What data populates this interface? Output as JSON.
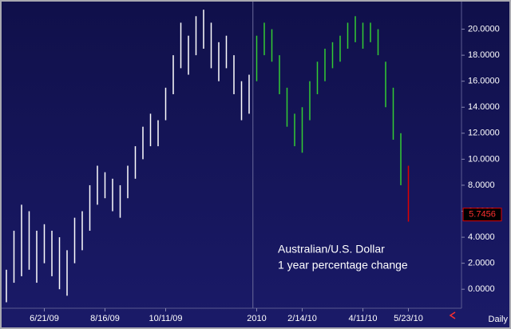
{
  "chart_data": {
    "type": "range-bar",
    "annotation": [
      "Australian/U.S. Dollar",
      "1 year percentage change"
    ],
    "period": "Daily",
    "last_value": {
      "value": 5.7456,
      "label": "5.7456"
    },
    "categories": [
      null,
      null,
      null,
      null,
      null,
      "6/21/09",
      null,
      null,
      null,
      null,
      null,
      null,
      null,
      "8/16/09",
      null,
      null,
      null,
      null,
      null,
      null,
      null,
      "10/11/09",
      null,
      null,
      null,
      null,
      null,
      null,
      null,
      null,
      null,
      null,
      null,
      "2010",
      null,
      null,
      null,
      null,
      null,
      "2/14/10",
      null,
      null,
      null,
      null,
      null,
      null,
      null,
      "4/11/10",
      null,
      null,
      null,
      null,
      null,
      "5/23/10"
    ],
    "series": [
      {
        "color": "#ffffff",
        "low": [
          -1.0,
          0.5,
          1.0,
          1.5,
          0.5,
          2.0,
          1.0,
          0.0,
          -0.5,
          2.0,
          3.0,
          4.5,
          6.5,
          7.0,
          6.0,
          5.5,
          7.0,
          8.5,
          10.0,
          11.0,
          11.0,
          13.0,
          15.0,
          17.0,
          16.5,
          18.0,
          18.5,
          17.0,
          16.0,
          17.0,
          15.0,
          13.0,
          13.5,
          null,
          null,
          null,
          null,
          null,
          null,
          null,
          null,
          null,
          null,
          null,
          null,
          null,
          null,
          null,
          null,
          null,
          null,
          null,
          null,
          null
        ],
        "high": [
          1.5,
          4.5,
          6.5,
          6.0,
          4.5,
          5.0,
          4.5,
          4.0,
          3.0,
          5.5,
          6.0,
          8.0,
          9.5,
          9.0,
          8.5,
          8.0,
          9.5,
          11.0,
          12.5,
          13.5,
          13.0,
          15.5,
          18.0,
          20.5,
          19.5,
          21.0,
          21.5,
          20.5,
          19.0,
          19.5,
          18.0,
          16.0,
          16.5,
          null,
          null,
          null,
          null,
          null,
          null,
          null,
          null,
          null,
          null,
          null,
          null,
          null,
          null,
          null,
          null,
          null,
          null,
          null,
          null,
          null
        ]
      },
      {
        "color": "#33cc33",
        "low": [
          null,
          null,
          null,
          null,
          null,
          null,
          null,
          null,
          null,
          null,
          null,
          null,
          null,
          null,
          null,
          null,
          null,
          null,
          null,
          null,
          null,
          null,
          null,
          null,
          null,
          null,
          null,
          null,
          null,
          null,
          null,
          null,
          null,
          16.0,
          18.0,
          17.5,
          15.0,
          12.5,
          11.0,
          10.5,
          13.0,
          15.0,
          16.0,
          17.0,
          17.5,
          18.5,
          19.0,
          18.5,
          19.0,
          18.0,
          14.0,
          11.5,
          8.0,
          null
        ],
        "high": [
          null,
          null,
          null,
          null,
          null,
          null,
          null,
          null,
          null,
          null,
          null,
          null,
          null,
          null,
          null,
          null,
          null,
          null,
          null,
          null,
          null,
          null,
          null,
          null,
          null,
          null,
          null,
          null,
          null,
          null,
          null,
          null,
          null,
          19.5,
          20.5,
          20.0,
          18.0,
          15.5,
          13.5,
          14.0,
          16.0,
          17.5,
          18.5,
          19.0,
          19.5,
          20.5,
          21.0,
          20.5,
          20.5,
          20.0,
          17.5,
          15.5,
          12.0,
          null
        ]
      },
      {
        "color": "#dd0000",
        "low": [
          null,
          null,
          null,
          null,
          null,
          null,
          null,
          null,
          null,
          null,
          null,
          null,
          null,
          null,
          null,
          null,
          null,
          null,
          null,
          null,
          null,
          null,
          null,
          null,
          null,
          null,
          null,
          null,
          null,
          null,
          null,
          null,
          null,
          null,
          null,
          null,
          null,
          null,
          null,
          null,
          null,
          null,
          null,
          null,
          null,
          null,
          null,
          null,
          null,
          null,
          null,
          null,
          null,
          5.2
        ],
        "high": [
          null,
          null,
          null,
          null,
          null,
          null,
          null,
          null,
          null,
          null,
          null,
          null,
          null,
          null,
          null,
          null,
          null,
          null,
          null,
          null,
          null,
          null,
          null,
          null,
          null,
          null,
          null,
          null,
          null,
          null,
          null,
          null,
          null,
          null,
          null,
          null,
          null,
          null,
          null,
          null,
          null,
          null,
          null,
          null,
          null,
          null,
          null,
          null,
          null,
          null,
          null,
          null,
          null,
          9.5
        ]
      }
    ],
    "ylim": [
      -1.4,
      22
    ],
    "yticks": [
      {
        "value": 0,
        "label": "0.0000"
      },
      {
        "value": 2,
        "label": "2.0000"
      },
      {
        "value": 4,
        "label": "4.0000"
      },
      {
        "value": 6,
        "label": "6.0000"
      },
      {
        "value": 8,
        "label": "8.0000"
      },
      {
        "value": 10,
        "label": "10.0000"
      },
      {
        "value": 12,
        "label": "12.0000"
      },
      {
        "value": 14,
        "label": "14.0000"
      },
      {
        "value": 16,
        "label": "16.0000"
      },
      {
        "value": 18,
        "label": "18.0000"
      },
      {
        "value": 20,
        "label": "20.0000"
      }
    ]
  }
}
